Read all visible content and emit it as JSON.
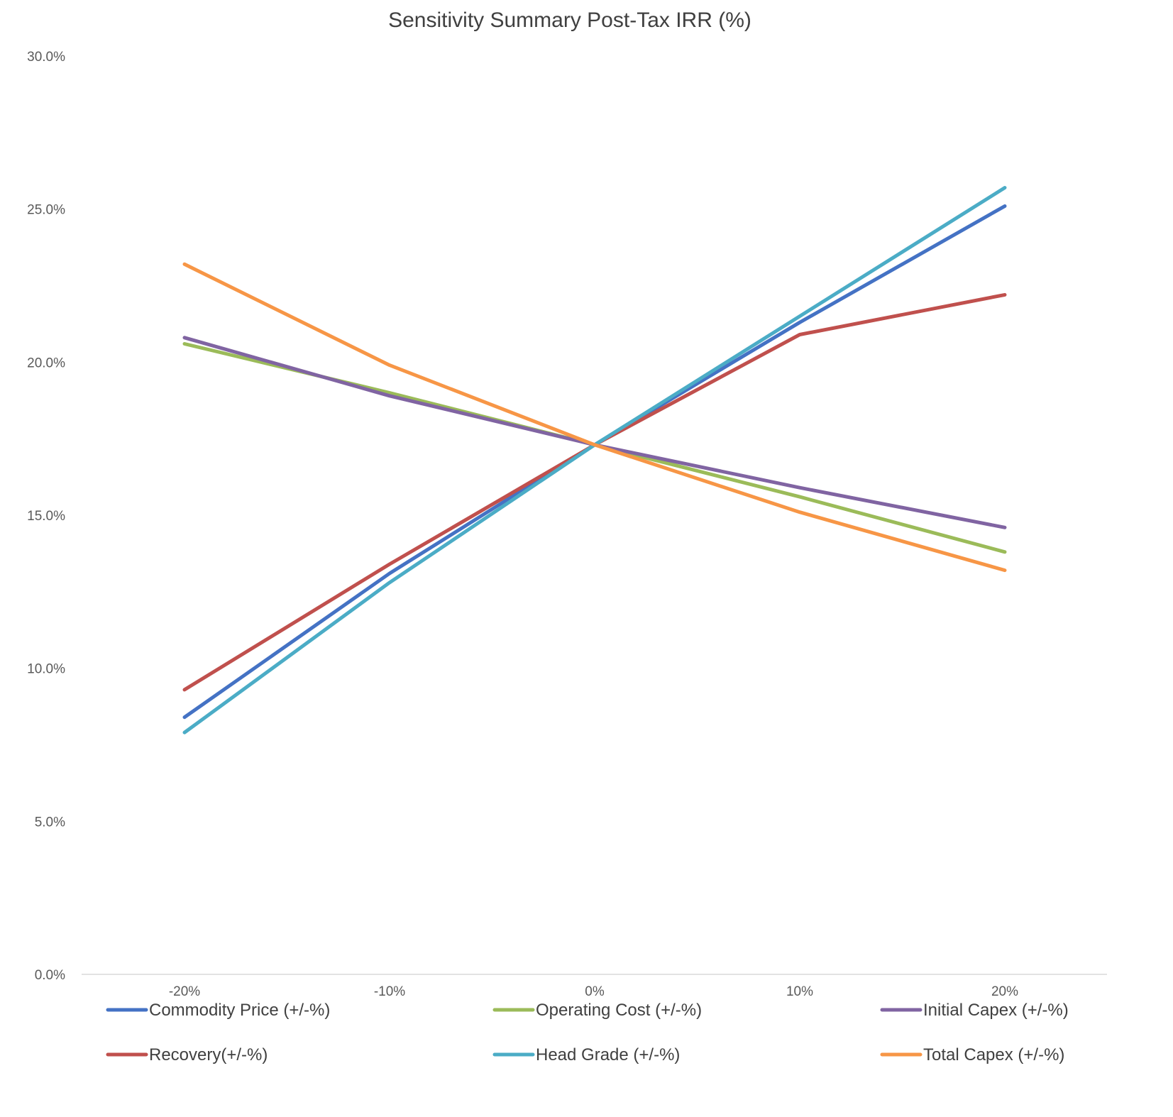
{
  "chart_data": {
    "type": "line",
    "title": "Sensitivity Summary Post-Tax IRR (%)",
    "xlabel": "",
    "ylabel": "",
    "x": [
      "-20%",
      "-10%",
      "0%",
      "10%",
      "20%"
    ],
    "ylim": [
      0,
      30
    ],
    "yticks": [
      "0.0%",
      "5.0%",
      "10.0%",
      "15.0%",
      "20.0%",
      "25.0%",
      "30.0%"
    ],
    "grid": false,
    "legend": "bottom",
    "series": [
      {
        "name": "Commodity Price (+/-%)",
        "color": "#4472c4",
        "values": [
          8.4,
          13.1,
          17.3,
          21.3,
          25.1
        ]
      },
      {
        "name": "Operating Cost (+/-%)",
        "color": "#9bbb59",
        "values": [
          20.6,
          19.0,
          17.3,
          15.6,
          13.8
        ]
      },
      {
        "name": "Initial Capex (+/-%)",
        "color": "#8064a2",
        "values": [
          20.8,
          18.9,
          17.3,
          15.9,
          14.6
        ]
      },
      {
        "name": "Recovery(+/-%)",
        "color": "#c0504d",
        "values": [
          9.3,
          13.4,
          17.3,
          20.9,
          22.2
        ]
      },
      {
        "name": "Head Grade (+/-%)",
        "color": "#4bacc6",
        "values": [
          7.9,
          12.8,
          17.3,
          21.5,
          25.7
        ]
      },
      {
        "name": "Total Capex (+/-%)",
        "color": "#f79646",
        "values": [
          23.2,
          19.9,
          17.3,
          15.1,
          13.2
        ]
      }
    ]
  }
}
